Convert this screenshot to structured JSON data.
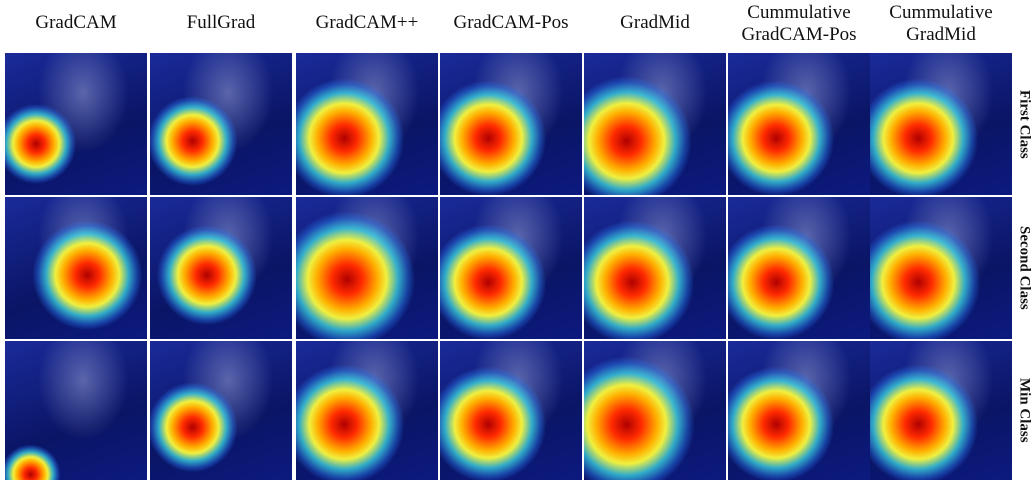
{
  "figure": {
    "columns": [
      [
        "GradCAM"
      ],
      [
        "FullGrad"
      ],
      [
        "GradCAM++"
      ],
      [
        "GradCAM-Pos"
      ],
      [
        "GradMid"
      ],
      [
        "Cummulative",
        "GradCAM-Pos"
      ],
      [
        "Cummulative",
        "GradMid"
      ]
    ],
    "rows": [
      "First Class",
      "Second Class",
      "Min Class"
    ]
  }
}
